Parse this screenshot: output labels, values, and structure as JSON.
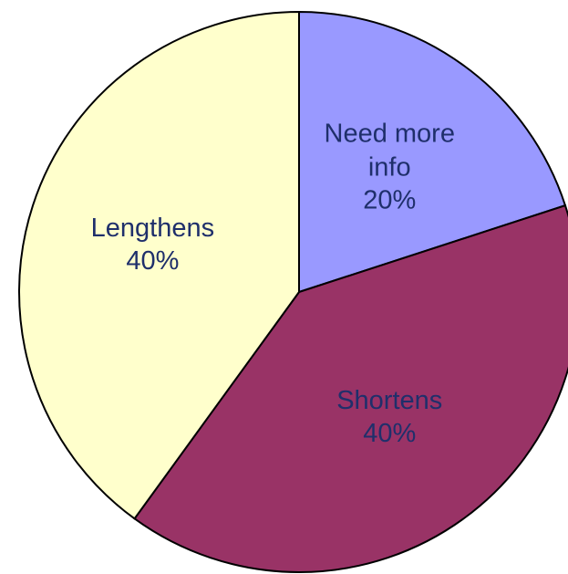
{
  "chart_data": {
    "type": "pie",
    "categories": [
      "Need more info",
      "Shortens",
      "Lengthens"
    ],
    "values": [
      20,
      40,
      40
    ],
    "value_labels": [
      "20%",
      "40%",
      "40%"
    ],
    "colors": [
      "#9999ff",
      "#993366",
      "#ffffcc"
    ]
  }
}
